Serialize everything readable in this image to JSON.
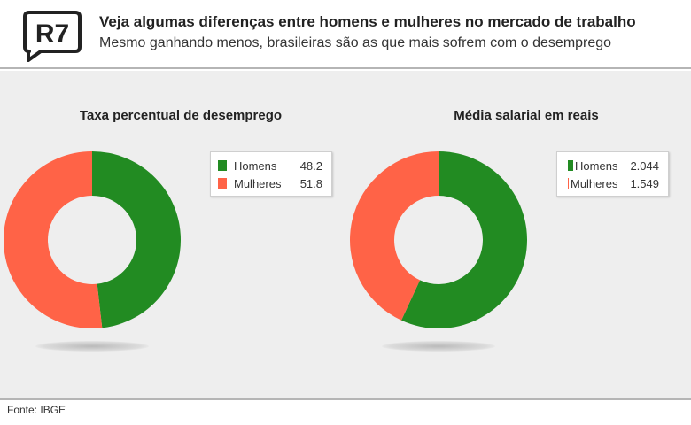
{
  "header": {
    "logo_text": "R7",
    "title": "Veja algumas diferenças entre homens e mulheres no mercado de trabalho",
    "subtitle": "Mesmo ganhando menos, brasileiras são as que mais sofrem com o desemprego"
  },
  "colors": {
    "homens": "#228b22",
    "mulheres": "#ff6347"
  },
  "chart_data": [
    {
      "type": "pie",
      "variant": "donut",
      "title": "Taxa percentual de desemprego",
      "categories": [
        "Homens",
        "Mulheres"
      ],
      "values": [
        48.2,
        51.8
      ],
      "value_labels": [
        "48.2",
        "51.8"
      ],
      "legend": "right"
    },
    {
      "type": "pie",
      "variant": "donut",
      "title": "Média salarial em reais",
      "categories": [
        "Homens",
        "Mulheres"
      ],
      "values": [
        2044,
        1549
      ],
      "value_labels": [
        "2.044",
        "1.549"
      ],
      "legend": "right"
    }
  ],
  "footer": {
    "source": "Fonte: IBGE"
  }
}
